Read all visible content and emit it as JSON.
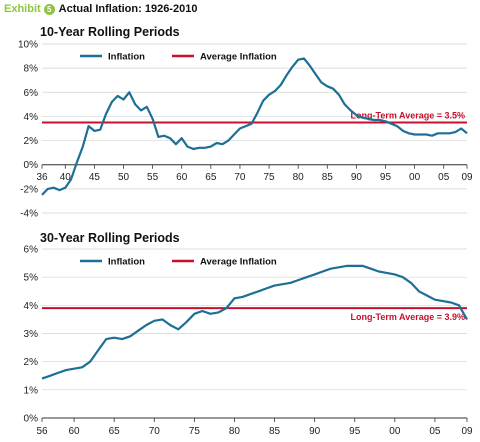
{
  "header": {
    "exhibit_label": "Exhibit",
    "exhibit_number": "5",
    "title": "Actual Inflation: 1926-2010"
  },
  "colors": {
    "series": "#1d6f96",
    "average": "#c8102e",
    "exhibit": "#8cc63f"
  },
  "chart_data": [
    {
      "type": "line",
      "title": "10-Year Rolling Periods",
      "xlabel": "",
      "ylabel": "",
      "xlim": [
        1936,
        2009
      ],
      "ylim": [
        -4,
        10
      ],
      "yticks": [
        "10%",
        "8%",
        "6%",
        "4%",
        "2%",
        "0%",
        "-2%",
        "-4%"
      ],
      "xticks": [
        "36",
        "40",
        "45",
        "50",
        "55",
        "60",
        "65",
        "70",
        "75",
        "80",
        "85",
        "90",
        "95",
        "00",
        "05",
        "09"
      ],
      "legend": [
        "Inflation",
        "Average Inflation"
      ],
      "legend_position": "top-left",
      "average": {
        "value": 3.5,
        "label": "Long-Term Average = 3.5%"
      },
      "series": [
        {
          "name": "Inflation",
          "x": [
            1936,
            1937,
            1938,
            1939,
            1940,
            1941,
            1942,
            1943,
            1944,
            1945,
            1946,
            1947,
            1948,
            1949,
            1950,
            1951,
            1952,
            1953,
            1954,
            1955,
            1956,
            1957,
            1958,
            1959,
            1960,
            1961,
            1962,
            1963,
            1964,
            1965,
            1966,
            1967,
            1968,
            1969,
            1970,
            1971,
            1972,
            1973,
            1974,
            1975,
            1976,
            1977,
            1978,
            1979,
            1980,
            1981,
            1982,
            1983,
            1984,
            1985,
            1986,
            1987,
            1988,
            1989,
            1990,
            1991,
            1992,
            1993,
            1994,
            1995,
            1996,
            1997,
            1998,
            1999,
            2000,
            2001,
            2002,
            2003,
            2004,
            2005,
            2006,
            2007,
            2008,
            2009
          ],
          "values": [
            -2.5,
            -2.0,
            -1.9,
            -2.1,
            -1.9,
            -1.2,
            0.2,
            1.5,
            3.2,
            2.8,
            2.9,
            4.2,
            5.2,
            5.7,
            5.4,
            6.0,
            5.0,
            4.5,
            4.8,
            3.8,
            2.3,
            2.4,
            2.2,
            1.7,
            2.2,
            1.5,
            1.3,
            1.4,
            1.4,
            1.5,
            1.8,
            1.7,
            2.0,
            2.5,
            3.0,
            3.2,
            3.4,
            4.3,
            5.3,
            5.8,
            6.1,
            6.6,
            7.4,
            8.1,
            8.7,
            8.8,
            8.2,
            7.5,
            6.8,
            6.5,
            6.3,
            5.8,
            5.0,
            4.5,
            4.1,
            3.9,
            3.8,
            3.7,
            3.7,
            3.6,
            3.4,
            3.2,
            2.8,
            2.6,
            2.5,
            2.5,
            2.5,
            2.4,
            2.6,
            2.6,
            2.6,
            2.7,
            3.0,
            2.6
          ]
        }
      ]
    },
    {
      "type": "line",
      "title": "30-Year Rolling Periods",
      "xlabel": "",
      "ylabel": "",
      "xlim": [
        1956,
        2009
      ],
      "ylim": [
        0,
        6
      ],
      "yticks": [
        "6%",
        "5%",
        "4%",
        "3%",
        "2%",
        "1%",
        "0%"
      ],
      "xticks": [
        "56",
        "60",
        "65",
        "70",
        "75",
        "80",
        "85",
        "90",
        "95",
        "00",
        "05",
        "09"
      ],
      "legend": [
        "Inflation",
        "Average Inflation"
      ],
      "legend_position": "top-left",
      "average": {
        "value": 3.9,
        "label": "Long-Term Average = 3.9%"
      },
      "series": [
        {
          "name": "Inflation",
          "x": [
            1956,
            1957,
            1958,
            1959,
            1960,
            1961,
            1962,
            1963,
            1964,
            1965,
            1966,
            1967,
            1968,
            1969,
            1970,
            1971,
            1972,
            1973,
            1974,
            1975,
            1976,
            1977,
            1978,
            1979,
            1980,
            1981,
            1982,
            1983,
            1984,
            1985,
            1986,
            1987,
            1988,
            1989,
            1990,
            1991,
            1992,
            1993,
            1994,
            1995,
            1996,
            1997,
            1998,
            1999,
            2000,
            2001,
            2002,
            2003,
            2004,
            2005,
            2006,
            2007,
            2008,
            2009
          ],
          "values": [
            1.4,
            1.5,
            1.6,
            1.7,
            1.75,
            1.8,
            2.0,
            2.4,
            2.8,
            2.85,
            2.8,
            2.9,
            3.1,
            3.3,
            3.45,
            3.5,
            3.3,
            3.15,
            3.4,
            3.7,
            3.8,
            3.7,
            3.75,
            3.9,
            4.25,
            4.3,
            4.4,
            4.5,
            4.6,
            4.7,
            4.75,
            4.8,
            4.9,
            5.0,
            5.1,
            5.2,
            5.3,
            5.35,
            5.4,
            5.4,
            5.4,
            5.3,
            5.2,
            5.15,
            5.1,
            5.0,
            4.8,
            4.5,
            4.35,
            4.2,
            4.15,
            4.1,
            4.0,
            3.5
          ]
        }
      ]
    }
  ]
}
